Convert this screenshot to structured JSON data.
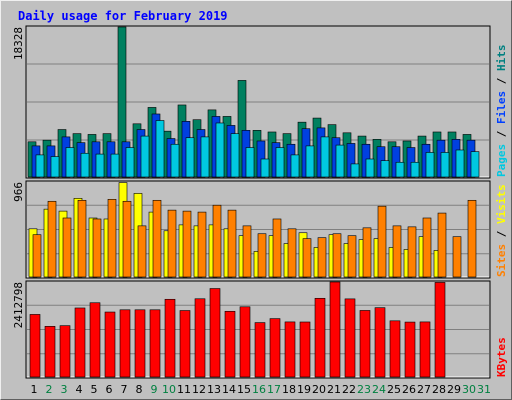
{
  "chart_data": {
    "type": "bar",
    "title": "Daily usage for February 2019",
    "x": [
      "1",
      "2",
      "3",
      "4",
      "5",
      "6",
      "7",
      "8",
      "9",
      "10",
      "11",
      "12",
      "13",
      "14",
      "15",
      "16",
      "17",
      "18",
      "19",
      "20",
      "21",
      "22",
      "23",
      "24",
      "25",
      "26",
      "27",
      "28",
      "29",
      "30",
      "31"
    ],
    "weekend_days": [
      2,
      3,
      9,
      10,
      16,
      17,
      23,
      24,
      30,
      31
    ],
    "panels": [
      {
        "id": "top",
        "ymax_label": "18328",
        "ymax": 18328,
        "side_label": [
          "Pages",
          " / ",
          "Files",
          " / ",
          "Hits"
        ],
        "side_label_colors": [
          "#00c8e0",
          "#000000",
          "#0040ff",
          "#000000",
          "#008080"
        ],
        "series": [
          {
            "name": "Hits",
            "color": "#008060",
            "values": [
              4300,
              4500,
              5800,
              5300,
              5200,
              5300,
              18328,
              6500,
              8500,
              5600,
              8800,
              7000,
              8200,
              7400,
              11800,
              5700,
              5500,
              5300,
              6700,
              7200,
              6400,
              5400,
              5000,
              4600,
              4300,
              4400,
              5000,
              5500,
              5500,
              5200,
              0
            ]
          },
          {
            "name": "Files",
            "color": "#0040e0",
            "values": [
              3800,
              3800,
              4900,
              4200,
              4300,
              4300,
              4300,
              5800,
              7700,
              4700,
              6800,
              5800,
              7400,
              6300,
              5700,
              4400,
              4200,
              4000,
              5900,
              6000,
              4800,
              4100,
              4000,
              3700,
              3700,
              3600,
              4000,
              4500,
              4600,
              4500,
              0
            ]
          },
          {
            "name": "Pages",
            "color": "#00c8e0",
            "values": [
              2700,
              2500,
              3600,
              2900,
              2800,
              2800,
              3600,
              5000,
              6900,
              4000,
              4800,
              4900,
              6600,
              5300,
              3600,
              2200,
              3600,
              2700,
              3800,
              4900,
              3900,
              1600,
              2200,
              2000,
              1800,
              1800,
              3000,
              3000,
              3300,
              3100,
              0
            ]
          }
        ]
      },
      {
        "id": "mid",
        "ymax_label": "966",
        "ymax": 966,
        "side_label": [
          "Sites",
          " / ",
          "Visits"
        ],
        "side_label_colors": [
          "#ff8000",
          "#000000",
          "#ffff00"
        ],
        "series": [
          {
            "name": "Visits",
            "color": "#ffff00",
            "values": [
              490,
              690,
              670,
              800,
              600,
              590,
              960,
              850,
              660,
              470,
              530,
              520,
              530,
              490,
              420,
              260,
              420,
              340,
              450,
              300,
              430,
              340,
              380,
              390,
              300,
              280,
              410,
              270,
              0,
              0,
              0
            ]
          },
          {
            "name": "Sites",
            "color": "#ff8000",
            "values": [
              430,
              770,
              600,
              780,
              590,
              790,
              770,
              520,
              780,
              680,
              670,
              660,
              730,
              680,
              520,
              440,
              590,
              490,
              390,
              400,
              440,
              420,
              500,
              720,
              520,
              510,
              600,
              650,
              410,
              780,
              0
            ]
          }
        ]
      },
      {
        "id": "bot",
        "ymax_label": "2412798",
        "ymax": 2412798,
        "side_label": [
          "KBytes"
        ],
        "side_label_colors": [
          "#ff0000"
        ],
        "series": [
          {
            "name": "KBytes",
            "color": "#ff0000",
            "values": [
              1589000,
              1287000,
              1304000,
              1753000,
              1886000,
              1650000,
              1707000,
              1707000,
              1707000,
              1974000,
              1688000,
              1987000,
              2247000,
              1669000,
              1783000,
              1382000,
              1483000,
              1399000,
              1397000,
              1999000,
              2412798,
              1984000,
              1690000,
              1761000,
              1427000,
              1395000,
              1399000,
              2402000,
              0,
              0,
              0
            ]
          }
        ]
      }
    ],
    "grid": true,
    "colors": {
      "weekday_label": "#000000",
      "weekend_label": "#008040",
      "panel_bg": "#c0c0c0"
    }
  }
}
